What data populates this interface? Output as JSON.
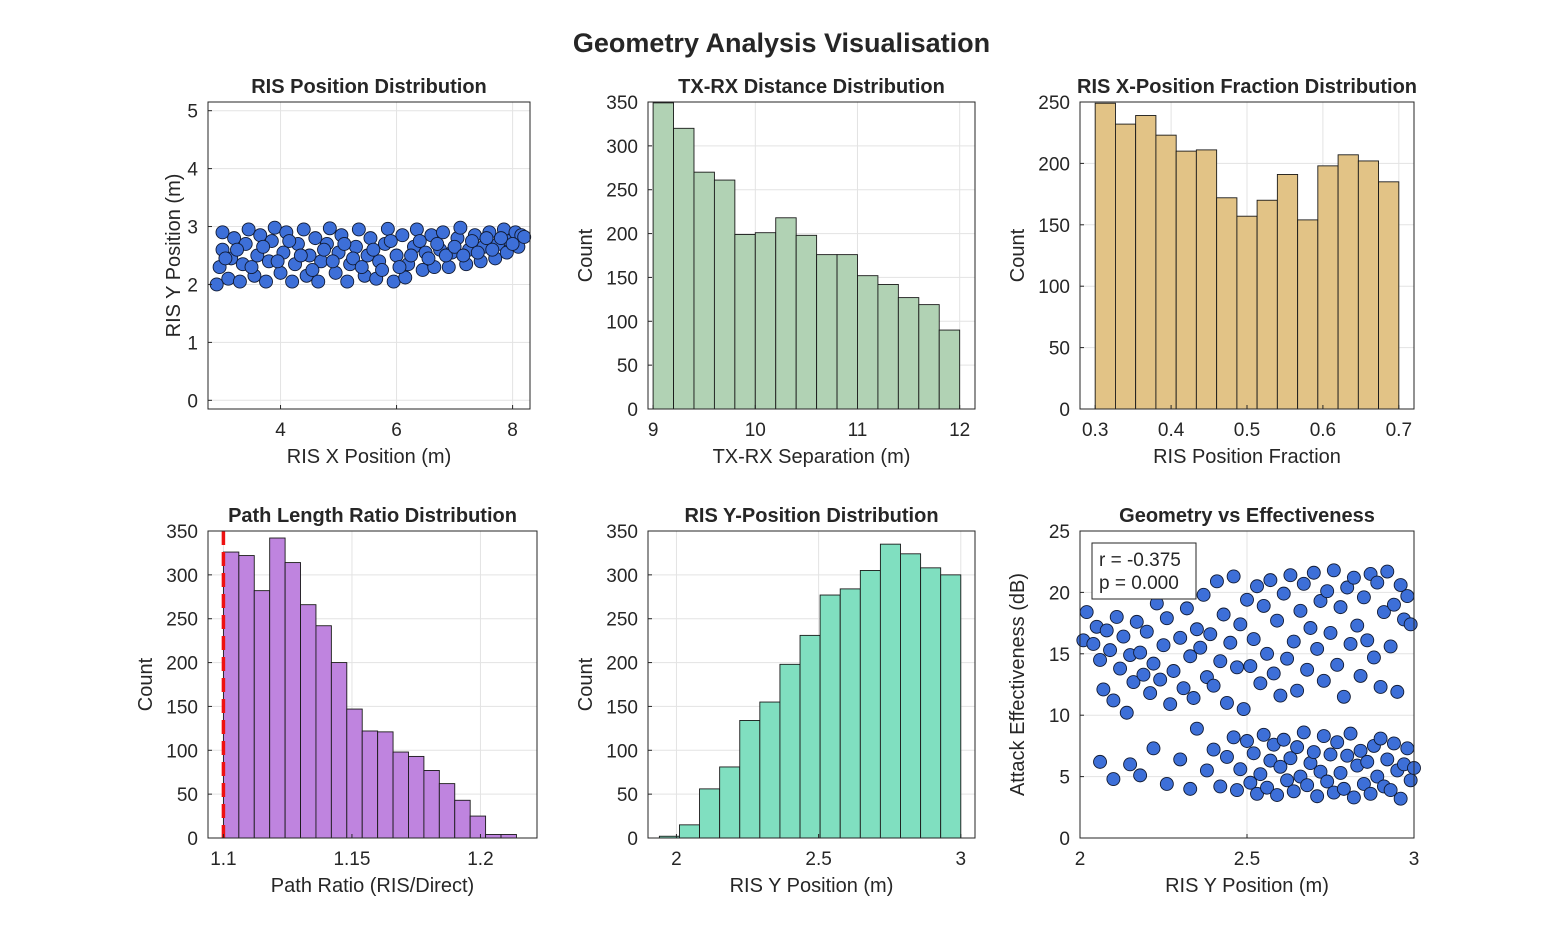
{
  "figure": {
    "title": "Geometry Analysis Visualisation"
  },
  "chart_data": [
    {
      "type": "scatter",
      "title": "RIS Position Distribution",
      "xlabel": "RIS X Position (m)",
      "ylabel": "RIS Y Position (m)",
      "xlim": [
        2.75,
        8.3
      ],
      "ylim": [
        -0.15,
        5.15
      ],
      "xticks": [
        4,
        6,
        8
      ],
      "yticks": [
        0,
        1,
        2,
        3,
        4,
        5
      ],
      "grid": true,
      "marker_color": "#3d6fd8",
      "points": [
        [
          2.9,
          2.0
        ],
        [
          2.95,
          2.3
        ],
        [
          3.0,
          2.6
        ],
        [
          3.0,
          2.9
        ],
        [
          3.1,
          2.1
        ],
        [
          3.15,
          2.45
        ],
        [
          3.2,
          2.8
        ],
        [
          3.3,
          2.05
        ],
        [
          3.35,
          2.35
        ],
        [
          3.4,
          2.7
        ],
        [
          3.45,
          2.95
        ],
        [
          3.55,
          2.15
        ],
        [
          3.6,
          2.5
        ],
        [
          3.65,
          2.85
        ],
        [
          3.75,
          2.05
        ],
        [
          3.8,
          2.4
        ],
        [
          3.85,
          2.75
        ],
        [
          3.9,
          2.98
        ],
        [
          4.0,
          2.2
        ],
        [
          4.05,
          2.55
        ],
        [
          4.1,
          2.9
        ],
        [
          4.2,
          2.05
        ],
        [
          4.25,
          2.35
        ],
        [
          4.3,
          2.7
        ],
        [
          4.4,
          2.95
        ],
        [
          4.45,
          2.15
        ],
        [
          4.5,
          2.5
        ],
        [
          4.6,
          2.8
        ],
        [
          4.65,
          2.05
        ],
        [
          4.7,
          2.4
        ],
        [
          4.8,
          2.7
        ],
        [
          4.85,
          2.97
        ],
        [
          4.95,
          2.2
        ],
        [
          5.0,
          2.55
        ],
        [
          5.05,
          2.85
        ],
        [
          5.15,
          2.05
        ],
        [
          5.2,
          2.35
        ],
        [
          5.3,
          2.65
        ],
        [
          5.35,
          2.95
        ],
        [
          5.45,
          2.15
        ],
        [
          5.5,
          2.5
        ],
        [
          5.55,
          2.8
        ],
        [
          5.65,
          2.1
        ],
        [
          5.7,
          2.4
        ],
        [
          5.8,
          2.7
        ],
        [
          5.85,
          2.96
        ],
        [
          5.95,
          2.05
        ],
        [
          6.0,
          2.5
        ],
        [
          6.1,
          2.85
        ],
        [
          6.15,
          2.12
        ],
        [
          6.2,
          2.35
        ],
        [
          6.3,
          2.65
        ],
        [
          6.35,
          2.95
        ],
        [
          6.45,
          2.25
        ],
        [
          6.5,
          2.55
        ],
        [
          6.6,
          2.85
        ],
        [
          6.65,
          2.3
        ],
        [
          6.75,
          2.6
        ],
        [
          6.8,
          2.9
        ],
        [
          6.9,
          2.3
        ],
        [
          6.95,
          2.55
        ],
        [
          7.05,
          2.8
        ],
        [
          7.1,
          2.98
        ],
        [
          7.2,
          2.35
        ],
        [
          7.25,
          2.6
        ],
        [
          7.35,
          2.85
        ],
        [
          7.45,
          2.4
        ],
        [
          7.5,
          2.65
        ],
        [
          7.6,
          2.9
        ],
        [
          7.7,
          2.45
        ],
        [
          7.75,
          2.7
        ],
        [
          7.85,
          2.95
        ],
        [
          7.9,
          2.55
        ],
        [
          7.95,
          2.75
        ],
        [
          8.05,
          2.9
        ],
        [
          8.1,
          2.65
        ],
        [
          8.15,
          2.85
        ],
        [
          8.2,
          2.82
        ],
        [
          3.05,
          2.45
        ],
        [
          3.25,
          2.6
        ],
        [
          3.5,
          2.3
        ],
        [
          3.7,
          2.65
        ],
        [
          3.95,
          2.4
        ],
        [
          4.15,
          2.75
        ],
        [
          4.35,
          2.5
        ],
        [
          4.55,
          2.25
        ],
        [
          4.75,
          2.6
        ],
        [
          4.9,
          2.4
        ],
        [
          5.1,
          2.7
        ],
        [
          5.25,
          2.45
        ],
        [
          5.4,
          2.3
        ],
        [
          5.6,
          2.6
        ],
        [
          5.75,
          2.25
        ],
        [
          5.9,
          2.75
        ],
        [
          6.05,
          2.3
        ],
        [
          6.25,
          2.5
        ],
        [
          6.4,
          2.75
        ],
        [
          6.55,
          2.45
        ],
        [
          6.7,
          2.7
        ],
        [
          6.85,
          2.5
        ],
        [
          7.0,
          2.65
        ],
        [
          7.15,
          2.5
        ],
        [
          7.3,
          2.75
        ],
        [
          7.4,
          2.55
        ],
        [
          7.55,
          2.8
        ],
        [
          7.65,
          2.6
        ],
        [
          7.8,
          2.8
        ],
        [
          8.0,
          2.7
        ]
      ]
    },
    {
      "type": "bar",
      "title": "TX-RX Distance Distribution",
      "xlabel": "TX-RX Separation (m)",
      "ylabel": "Count",
      "xlim": [
        8.95,
        12.15
      ],
      "ylim": [
        0,
        350
      ],
      "xticks": [
        9,
        10,
        11,
        12
      ],
      "yticks": [
        0,
        50,
        100,
        150,
        200,
        250,
        300,
        350
      ],
      "grid": true,
      "color": "#b1d2b4",
      "bin_edges": [
        9.0,
        9.2,
        9.4,
        9.6,
        9.8,
        10.0,
        10.2,
        10.4,
        10.6,
        10.8,
        11.0,
        11.2,
        11.4,
        11.6,
        11.8,
        12.0
      ],
      "values": [
        349,
        320,
        270,
        261,
        199,
        201,
        218,
        198,
        176,
        176,
        152,
        142,
        127,
        119,
        90
      ]
    },
    {
      "type": "bar",
      "title": "RIS X-Position Fraction Distribution",
      "xlabel": "RIS Position Fraction",
      "ylabel": "Count",
      "xlim": [
        0.28,
        0.72
      ],
      "ylim": [
        0,
        250
      ],
      "xticks": [
        0.3,
        0.4,
        0.5,
        0.6,
        0.7
      ],
      "yticks": [
        0,
        50,
        100,
        150,
        200,
        250
      ],
      "grid": true,
      "color": "#e2c386",
      "bin_edges": [
        0.3,
        0.3267,
        0.3533,
        0.38,
        0.4067,
        0.4333,
        0.46,
        0.4867,
        0.5133,
        0.54,
        0.5667,
        0.5933,
        0.62,
        0.6467,
        0.6733,
        0.7
      ],
      "values": [
        249,
        232,
        239,
        223,
        210,
        211,
        172,
        157,
        170,
        191,
        154,
        198,
        207,
        202,
        185
      ]
    },
    {
      "type": "bar",
      "title": "Path Length Ratio Distribution",
      "xlabel": "Path Ratio (RIS/Direct)",
      "ylabel": "Count",
      "xlim": [
        1.094,
        1.222
      ],
      "ylim": [
        0,
        350
      ],
      "xticks": [
        1.1,
        1.15,
        1.2
      ],
      "yticks": [
        0,
        50,
        100,
        150,
        200,
        250,
        300,
        350
      ],
      "grid": true,
      "color": "#bf84df",
      "reference_line": {
        "x": 1.1,
        "color": "#ee1111",
        "style": "dashed"
      },
      "bin_edges": [
        1.1,
        1.106,
        1.112,
        1.118,
        1.124,
        1.13,
        1.136,
        1.142,
        1.148,
        1.154,
        1.16,
        1.166,
        1.172,
        1.178,
        1.184,
        1.19,
        1.196,
        1.202,
        1.208,
        1.214
      ],
      "values": [
        326,
        322,
        282,
        342,
        314,
        266,
        242,
        200,
        147,
        122,
        121,
        98,
        93,
        77,
        62,
        43,
        25,
        4,
        4
      ]
    },
    {
      "type": "bar",
      "title": "RIS Y-Position Distribution",
      "xlabel": "RIS Y Position (m)",
      "ylabel": "Count",
      "xlim": [
        1.9,
        3.05
      ],
      "ylim": [
        0,
        350
      ],
      "xticks": [
        2,
        2.5,
        3
      ],
      "yticks": [
        0,
        50,
        100,
        150,
        200,
        250,
        300,
        350
      ],
      "grid": true,
      "color": "#80dfc0",
      "bin_edges": [
        1.94,
        2.0107,
        2.0813,
        2.152,
        2.2227,
        2.2933,
        2.364,
        2.4347,
        2.5053,
        2.576,
        2.6467,
        2.7173,
        2.788,
        2.8587,
        2.9293,
        3.0
      ],
      "values": [
        2,
        15,
        56,
        81,
        134,
        155,
        198,
        231,
        277,
        284,
        305,
        335,
        324,
        308,
        300
      ]
    },
    {
      "type": "scatter",
      "title": "Geometry vs Effectiveness",
      "xlabel": "RIS Y Position (m)",
      "ylabel": "Attack Effectiveness (dB)",
      "xlim": [
        2,
        3
      ],
      "ylim": [
        0,
        25
      ],
      "xticks": [
        2,
        2.5,
        3
      ],
      "yticks": [
        0,
        5,
        10,
        15,
        20,
        25
      ],
      "grid": true,
      "marker_color": "#3d6fd8",
      "annotation": [
        "r = -0.375",
        "p = 0.000"
      ],
      "points": [
        [
          2.01,
          16.1
        ],
        [
          2.02,
          18.4
        ],
        [
          2.04,
          15.8
        ],
        [
          2.05,
          17.2
        ],
        [
          2.06,
          14.5
        ],
        [
          2.07,
          12.1
        ],
        [
          2.08,
          16.9
        ],
        [
          2.09,
          15.3
        ],
        [
          2.1,
          11.2
        ],
        [
          2.11,
          18.0
        ],
        [
          2.12,
          13.8
        ],
        [
          2.13,
          16.4
        ],
        [
          2.14,
          10.2
        ],
        [
          2.15,
          14.9
        ],
        [
          2.16,
          12.7
        ],
        [
          2.17,
          17.6
        ],
        [
          2.18,
          15.1
        ],
        [
          2.19,
          13.3
        ],
        [
          2.2,
          16.8
        ],
        [
          2.21,
          11.8
        ],
        [
          2.22,
          14.2
        ],
        [
          2.23,
          19.1
        ],
        [
          2.24,
          12.9
        ],
        [
          2.25,
          15.7
        ],
        [
          2.26,
          17.9
        ],
        [
          2.27,
          10.9
        ],
        [
          2.28,
          13.6
        ],
        [
          2.29,
          20.2
        ],
        [
          2.3,
          16.3
        ],
        [
          2.31,
          12.2
        ],
        [
          2.32,
          18.7
        ],
        [
          2.33,
          14.8
        ],
        [
          2.34,
          11.4
        ],
        [
          2.35,
          17.0
        ],
        [
          2.36,
          15.5
        ],
        [
          2.37,
          19.8
        ],
        [
          2.38,
          13.1
        ],
        [
          2.39,
          16.6
        ],
        [
          2.4,
          12.4
        ],
        [
          2.41,
          20.9
        ],
        [
          2.42,
          14.4
        ],
        [
          2.43,
          18.2
        ],
        [
          2.44,
          11.0
        ],
        [
          2.45,
          15.9
        ],
        [
          2.46,
          21.3
        ],
        [
          2.47,
          13.9
        ],
        [
          2.48,
          17.4
        ],
        [
          2.49,
          10.5
        ],
        [
          2.5,
          19.4
        ],
        [
          2.51,
          14.0
        ],
        [
          2.52,
          16.2
        ],
        [
          2.53,
          20.5
        ],
        [
          2.54,
          12.6
        ],
        [
          2.55,
          18.9
        ],
        [
          2.56,
          15.0
        ],
        [
          2.57,
          21.0
        ],
        [
          2.58,
          13.4
        ],
        [
          2.59,
          17.7
        ],
        [
          2.6,
          11.6
        ],
        [
          2.61,
          19.9
        ],
        [
          2.62,
          14.6
        ],
        [
          2.63,
          21.4
        ],
        [
          2.64,
          16.0
        ],
        [
          2.65,
          12.0
        ],
        [
          2.66,
          18.5
        ],
        [
          2.67,
          20.7
        ],
        [
          2.68,
          13.7
        ],
        [
          2.69,
          17.1
        ],
        [
          2.7,
          21.6
        ],
        [
          2.71,
          15.4
        ],
        [
          2.72,
          19.3
        ],
        [
          2.73,
          12.8
        ],
        [
          2.74,
          20.1
        ],
        [
          2.75,
          16.7
        ],
        [
          2.76,
          21.8
        ],
        [
          2.77,
          14.1
        ],
        [
          2.78,
          18.8
        ],
        [
          2.79,
          11.5
        ],
        [
          2.8,
          20.4
        ],
        [
          2.81,
          15.8
        ],
        [
          2.82,
          21.2
        ],
        [
          2.83,
          17.3
        ],
        [
          2.84,
          13.2
        ],
        [
          2.85,
          19.6
        ],
        [
          2.86,
          16.1
        ],
        [
          2.87,
          21.5
        ],
        [
          2.88,
          14.7
        ],
        [
          2.89,
          20.8
        ],
        [
          2.9,
          12.3
        ],
        [
          2.91,
          18.4
        ],
        [
          2.92,
          21.7
        ],
        [
          2.93,
          15.6
        ],
        [
          2.94,
          19.0
        ],
        [
          2.95,
          11.9
        ],
        [
          2.96,
          20.6
        ],
        [
          2.97,
          17.8
        ],
        [
          2.98,
          19.7
        ],
        [
          2.99,
          17.4
        ],
        [
          2.06,
          6.2
        ],
        [
          2.1,
          4.8
        ],
        [
          2.15,
          6.0
        ],
        [
          2.18,
          5.1
        ],
        [
          2.22,
          7.3
        ],
        [
          2.26,
          4.4
        ],
        [
          2.3,
          6.4
        ],
        [
          2.33,
          4.0
        ],
        [
          2.35,
          8.9
        ],
        [
          2.38,
          5.5
        ],
        [
          2.4,
          7.2
        ],
        [
          2.42,
          4.2
        ],
        [
          2.44,
          6.6
        ],
        [
          2.46,
          8.2
        ],
        [
          2.47,
          3.9
        ],
        [
          2.48,
          5.6
        ],
        [
          2.5,
          7.9
        ],
        [
          2.51,
          4.5
        ],
        [
          2.52,
          6.9
        ],
        [
          2.53,
          3.6
        ],
        [
          2.54,
          5.2
        ],
        [
          2.55,
          8.4
        ],
        [
          2.56,
          4.1
        ],
        [
          2.57,
          6.3
        ],
        [
          2.58,
          7.6
        ],
        [
          2.59,
          3.5
        ],
        [
          2.6,
          5.8
        ],
        [
          2.61,
          8.0
        ],
        [
          2.62,
          4.7
        ],
        [
          2.63,
          6.5
        ],
        [
          2.64,
          3.8
        ],
        [
          2.65,
          7.4
        ],
        [
          2.66,
          5.0
        ],
        [
          2.67,
          8.6
        ],
        [
          2.68,
          4.3
        ],
        [
          2.69,
          6.1
        ],
        [
          2.7,
          7.0
        ],
        [
          2.71,
          3.4
        ],
        [
          2.72,
          5.4
        ],
        [
          2.73,
          8.3
        ],
        [
          2.74,
          4.6
        ],
        [
          2.75,
          6.8
        ],
        [
          2.76,
          3.7
        ],
        [
          2.77,
          7.8
        ],
        [
          2.78,
          5.3
        ],
        [
          2.79,
          4.0
        ],
        [
          2.8,
          6.7
        ],
        [
          2.81,
          8.5
        ],
        [
          2.82,
          3.3
        ],
        [
          2.83,
          5.9
        ],
        [
          2.84,
          7.1
        ],
        [
          2.85,
          4.4
        ],
        [
          2.86,
          6.2
        ],
        [
          2.87,
          3.6
        ],
        [
          2.88,
          7.5
        ],
        [
          2.89,
          5.0
        ],
        [
          2.9,
          8.1
        ],
        [
          2.91,
          4.2
        ],
        [
          2.92,
          6.4
        ],
        [
          2.93,
          3.9
        ],
        [
          2.94,
          7.7
        ],
        [
          2.95,
          5.5
        ],
        [
          2.96,
          3.2
        ],
        [
          2.97,
          6.0
        ],
        [
          2.98,
          7.3
        ],
        [
          2.99,
          4.7
        ],
        [
          3.0,
          5.7
        ]
      ]
    }
  ]
}
